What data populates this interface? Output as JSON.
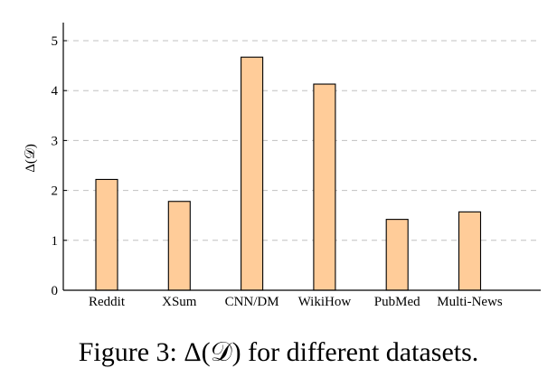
{
  "chart_data": {
    "type": "bar",
    "categories": [
      "Reddit",
      "XSum",
      "CNN/DM",
      "WikiHow",
      "PubMed",
      "Multi-News"
    ],
    "values": [
      2.22,
      1.78,
      4.67,
      4.13,
      1.42,
      1.57
    ],
    "ylabel": "Δ(𝒟)",
    "ylim": [
      0,
      5.4
    ],
    "yticks": [
      "0",
      "1",
      "2",
      "3",
      "4",
      "5"
    ],
    "grid": "horizontal-dashed",
    "bar_color": "#ffcc99",
    "bar_edge_color": "#000000",
    "grid_color": "#c0c0c0"
  },
  "caption": "Figure 3: Δ(𝒟) for different datasets."
}
